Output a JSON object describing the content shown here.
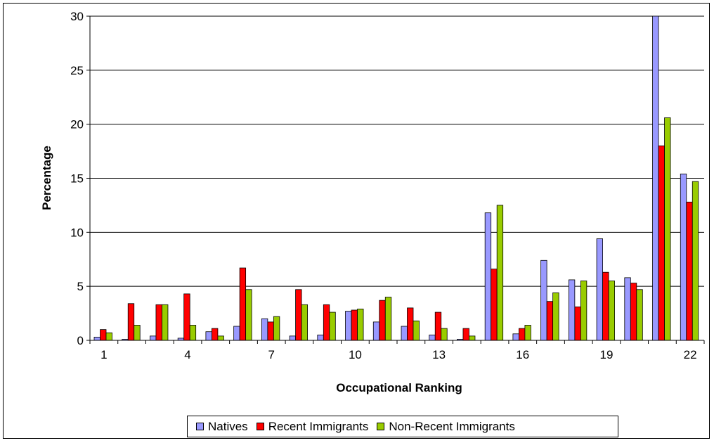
{
  "chart_data": {
    "type": "bar",
    "title": "",
    "xlabel": "Occupational Ranking",
    "ylabel": "Percentage",
    "ylim": [
      0,
      30
    ],
    "yticks": [
      0,
      5,
      10,
      15,
      20,
      25,
      30
    ],
    "categories": [
      1,
      2,
      3,
      4,
      5,
      6,
      7,
      8,
      9,
      10,
      11,
      12,
      13,
      14,
      15,
      16,
      17,
      18,
      19,
      20,
      21,
      22
    ],
    "xtick_labels": [
      "1",
      "4",
      "7",
      "10",
      "13",
      "16",
      "19",
      "22"
    ],
    "xtick_categories": [
      1,
      4,
      7,
      10,
      13,
      16,
      19,
      22
    ],
    "grid": true,
    "legend_position": "bottom",
    "series": [
      {
        "name": "Natives",
        "color": "#9999ff",
        "values": [
          0.3,
          0.1,
          0.4,
          0.2,
          0.8,
          1.3,
          2.0,
          0.4,
          0.5,
          2.7,
          1.7,
          1.3,
          0.5,
          0.1,
          11.8,
          0.6,
          7.4,
          5.6,
          9.4,
          5.8,
          30.5,
          15.4
        ]
      },
      {
        "name": "Recent Immigrants",
        "color": "#ff0000",
        "values": [
          1.0,
          3.4,
          3.3,
          4.3,
          1.1,
          6.7,
          1.7,
          4.7,
          3.3,
          2.8,
          3.7,
          3.0,
          2.6,
          1.1,
          6.6,
          1.1,
          3.6,
          3.1,
          6.3,
          5.3,
          18.0,
          12.8
        ]
      },
      {
        "name": "Non-Recent Immigrants",
        "color": "#99cc00",
        "values": [
          0.7,
          1.4,
          3.3,
          1.4,
          0.4,
          4.7,
          2.2,
          3.3,
          2.6,
          2.9,
          4.0,
          1.8,
          1.1,
          0.4,
          12.5,
          1.4,
          4.4,
          5.5,
          5.5,
          4.7,
          20.6,
          14.7
        ]
      }
    ]
  },
  "legend": {
    "natives": "Natives",
    "recent": "Recent Immigrants",
    "nonrecent": "Non-Recent Immigrants"
  }
}
